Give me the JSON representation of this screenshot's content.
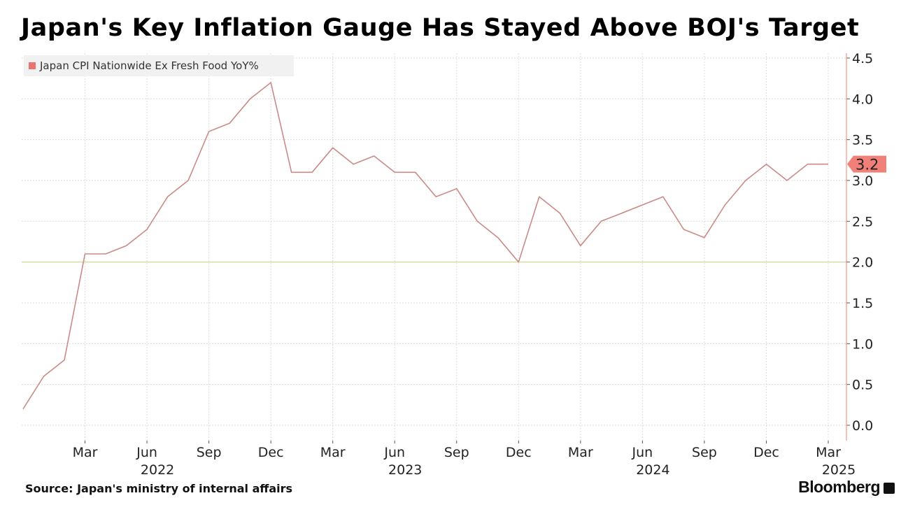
{
  "header": {
    "title": "Japan's Key Inflation Gauge Has Stayed Above BOJ's Target"
  },
  "footer": {
    "source": "Source: Japan's ministry of internal affairs",
    "brand": "Bloomberg",
    "brand_icon": "bloomberg-terminal-icon"
  },
  "colors": {
    "series_line": "#c98b88",
    "last_value_badge": "#f08078",
    "legend_swatch": "#e8756f",
    "reference_line": "#d7dca6",
    "grid": "#dcdcdc"
  },
  "chart_data": {
    "type": "line",
    "title": "Japan's Key Inflation Gauge Has Stayed Above BOJ's Target",
    "y_axis_side": "right",
    "ylim": [
      0,
      4.5
    ],
    "yticks": [
      "0.0",
      "0.5",
      "1.0",
      "1.5",
      "2.0",
      "2.5",
      "3.0",
      "3.5",
      "4.0",
      "4.5"
    ],
    "reference_line": 2.0,
    "grid": true,
    "legend_position": "top-left",
    "x_tick_labels": [
      {
        "month": "2022-03",
        "label": "Mar",
        "year": ""
      },
      {
        "month": "2022-06",
        "label": "Jun",
        "year": "2022"
      },
      {
        "month": "2022-09",
        "label": "Sep",
        "year": ""
      },
      {
        "month": "2022-12",
        "label": "Dec",
        "year": ""
      },
      {
        "month": "2023-03",
        "label": "Mar",
        "year": ""
      },
      {
        "month": "2023-06",
        "label": "Jun",
        "year": "2023"
      },
      {
        "month": "2023-09",
        "label": "Sep",
        "year": ""
      },
      {
        "month": "2023-12",
        "label": "Dec",
        "year": ""
      },
      {
        "month": "2024-03",
        "label": "Mar",
        "year": ""
      },
      {
        "month": "2024-06",
        "label": "Jun",
        "year": "2024"
      },
      {
        "month": "2024-09",
        "label": "Sep",
        "year": ""
      },
      {
        "month": "2024-12",
        "label": "Dec",
        "year": ""
      },
      {
        "month": "2025-03",
        "label": "Mar",
        "year": "2025"
      }
    ],
    "series": [
      {
        "name": "Japan CPI Nationwide Ex Fresh Food YoY%",
        "last_value_label": "3.2",
        "x": [
          "2021-12",
          "2022-01",
          "2022-02",
          "2022-03",
          "2022-04",
          "2022-05",
          "2022-06",
          "2022-07",
          "2022-08",
          "2022-09",
          "2022-10",
          "2022-11",
          "2022-12",
          "2023-01",
          "2023-02",
          "2023-03",
          "2023-04",
          "2023-05",
          "2023-06",
          "2023-07",
          "2023-08",
          "2023-09",
          "2023-10",
          "2023-11",
          "2023-12",
          "2024-01",
          "2024-02",
          "2024-03",
          "2024-04",
          "2024-05",
          "2024-06",
          "2024-07",
          "2024-08",
          "2024-09",
          "2024-10",
          "2024-11",
          "2024-12",
          "2025-01",
          "2025-02",
          "2025-03"
        ],
        "values": [
          0.2,
          0.6,
          0.8,
          2.1,
          2.1,
          2.2,
          2.4,
          2.8,
          3.0,
          3.6,
          3.7,
          4.0,
          4.2,
          3.1,
          3.1,
          3.4,
          3.2,
          3.3,
          3.1,
          3.1,
          2.8,
          2.9,
          2.5,
          2.3,
          2.0,
          2.8,
          2.6,
          2.2,
          2.5,
          2.6,
          2.7,
          2.8,
          2.4,
          2.3,
          2.7,
          3.0,
          3.2,
          3.0,
          3.2,
          3.2
        ]
      }
    ]
  }
}
